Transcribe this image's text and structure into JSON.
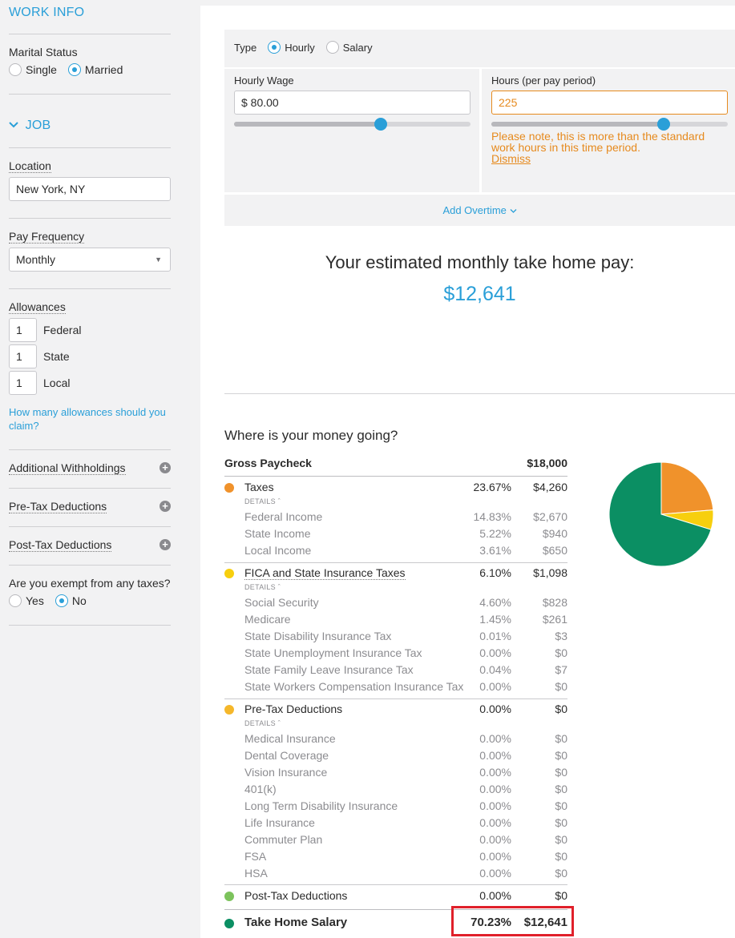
{
  "sidebar": {
    "work_info_title": "WORK INFO",
    "marital_status_label": "Marital Status",
    "marital_options": [
      {
        "label": "Single",
        "selected": false
      },
      {
        "label": "Married",
        "selected": true
      }
    ],
    "job_title": "JOB",
    "location_label": "Location",
    "location_value": "New York, NY",
    "pay_frequency_label": "Pay Frequency",
    "pay_frequency_value": "Monthly",
    "allowances_label": "Allowances",
    "allowances": [
      {
        "value": "1",
        "label": "Federal"
      },
      {
        "value": "1",
        "label": "State"
      },
      {
        "value": "1",
        "label": "Local"
      }
    ],
    "allowances_help_link": "How many allowances should you claim?",
    "additional_withholdings": "Additional Withholdings",
    "pre_tax_deductions": "Pre-Tax Deductions",
    "post_tax_deductions": "Post-Tax Deductions",
    "exempt_question": "Are you exempt from any taxes?",
    "exempt_options": [
      {
        "label": "Yes",
        "selected": false
      },
      {
        "label": "No",
        "selected": true
      }
    ]
  },
  "pay_panel": {
    "type_label": "Type",
    "type_options": [
      {
        "label": "Hourly",
        "selected": true
      },
      {
        "label": "Salary",
        "selected": false
      }
    ],
    "hourly_wage_label": "Hourly Wage",
    "hourly_wage_value": "$ 80.00",
    "hourly_wage_slider_fraction": 0.62,
    "hours_label": "Hours (per pay period)",
    "hours_value": "225",
    "hours_slider_fraction": 0.73,
    "warning_text": "Please note, this is more than the standard work hours in this time period.",
    "dismiss_label": "Dismiss",
    "add_overtime_label": "Add Overtime"
  },
  "estimate": {
    "title": "Your estimated monthly take home pay:",
    "value": "$12,641"
  },
  "breakdown": {
    "heading": "Where is your money going?",
    "gross_label": "Gross Paycheck",
    "gross_amount": "$18,000",
    "details_label": "DETAILS",
    "taxes": {
      "label": "Taxes",
      "pct": "23.67%",
      "amt": "$4,260",
      "color": "#f0922b",
      "items": [
        {
          "name": "Federal Income",
          "pct": "14.83%",
          "amt": "$2,670"
        },
        {
          "name": "State Income",
          "pct": "5.22%",
          "amt": "$940"
        },
        {
          "name": "Local Income",
          "pct": "3.61%",
          "amt": "$650"
        }
      ]
    },
    "fica": {
      "label": "FICA and State Insurance Taxes",
      "pct": "6.10%",
      "amt": "$1,098",
      "color": "#f7cf0e",
      "items": [
        {
          "name": "Social Security",
          "pct": "4.60%",
          "amt": "$828"
        },
        {
          "name": "Medicare",
          "pct": "1.45%",
          "amt": "$261"
        },
        {
          "name": "State Disability Insurance Tax",
          "pct": "0.01%",
          "amt": "$3"
        },
        {
          "name": "State Unemployment Insurance Tax",
          "pct": "0.00%",
          "amt": "$0"
        },
        {
          "name": "State Family Leave Insurance Tax",
          "pct": "0.04%",
          "amt": "$7"
        },
        {
          "name": "State Workers Compensation Insurance Tax",
          "pct": "0.00%",
          "amt": "$0"
        }
      ]
    },
    "pretax": {
      "label": "Pre-Tax Deductions",
      "pct": "0.00%",
      "amt": "$0",
      "color": "#f5b72a",
      "items": [
        {
          "name": "Medical Insurance",
          "pct": "0.00%",
          "amt": "$0"
        },
        {
          "name": "Dental Coverage",
          "pct": "0.00%",
          "amt": "$0"
        },
        {
          "name": "Vision Insurance",
          "pct": "0.00%",
          "amt": "$0"
        },
        {
          "name": "401(k)",
          "pct": "0.00%",
          "amt": "$0"
        },
        {
          "name": "Long Term Disability Insurance",
          "pct": "0.00%",
          "amt": "$0"
        },
        {
          "name": "Life Insurance",
          "pct": "0.00%",
          "amt": "$0"
        },
        {
          "name": "Commuter Plan",
          "pct": "0.00%",
          "amt": "$0"
        },
        {
          "name": "FSA",
          "pct": "0.00%",
          "amt": "$0"
        },
        {
          "name": "HSA",
          "pct": "0.00%",
          "amt": "$0"
        }
      ]
    },
    "posttax": {
      "label": "Post-Tax Deductions",
      "pct": "0.00%",
      "amt": "$0",
      "color": "#7cc35c"
    },
    "take_home": {
      "label": "Take Home Salary",
      "pct": "70.23%",
      "amt": "$12,641",
      "color": "#0b8f63"
    }
  },
  "chart_data": {
    "type": "pie",
    "categories": [
      "Taxes",
      "FICA and State Insurance Taxes",
      "Pre-Tax Deductions",
      "Post-Tax Deductions",
      "Take Home Salary"
    ],
    "values": [
      23.67,
      6.1,
      0.0,
      0.0,
      70.23
    ],
    "colors": [
      "#f0922b",
      "#f7cf0e",
      "#f5b72a",
      "#7cc35c",
      "#0b8f63"
    ]
  }
}
